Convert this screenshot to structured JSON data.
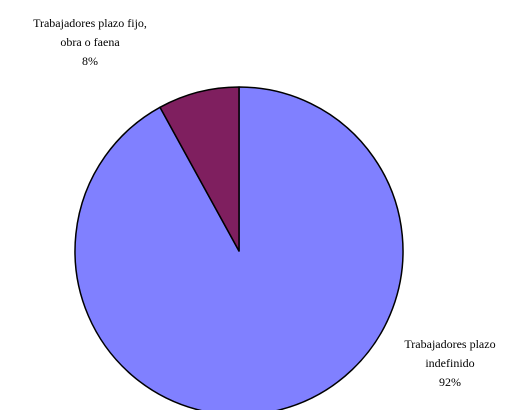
{
  "chart_data": {
    "type": "pie",
    "title": "",
    "slices": [
      {
        "label_lines": [
          "Trabajadores plazo",
          "indefinido"
        ],
        "percent_label": "92%",
        "value": 92,
        "color": "#8080ff"
      },
      {
        "label_lines": [
          "Trabajadores plazo fijo,",
          "obra o faena"
        ],
        "percent_label": "8%",
        "value": 8,
        "color": "#7f1f5f"
      }
    ],
    "start": "12 o'clock",
    "direction": "clockwise",
    "legend": "none",
    "slice_border_color": "#000000"
  }
}
